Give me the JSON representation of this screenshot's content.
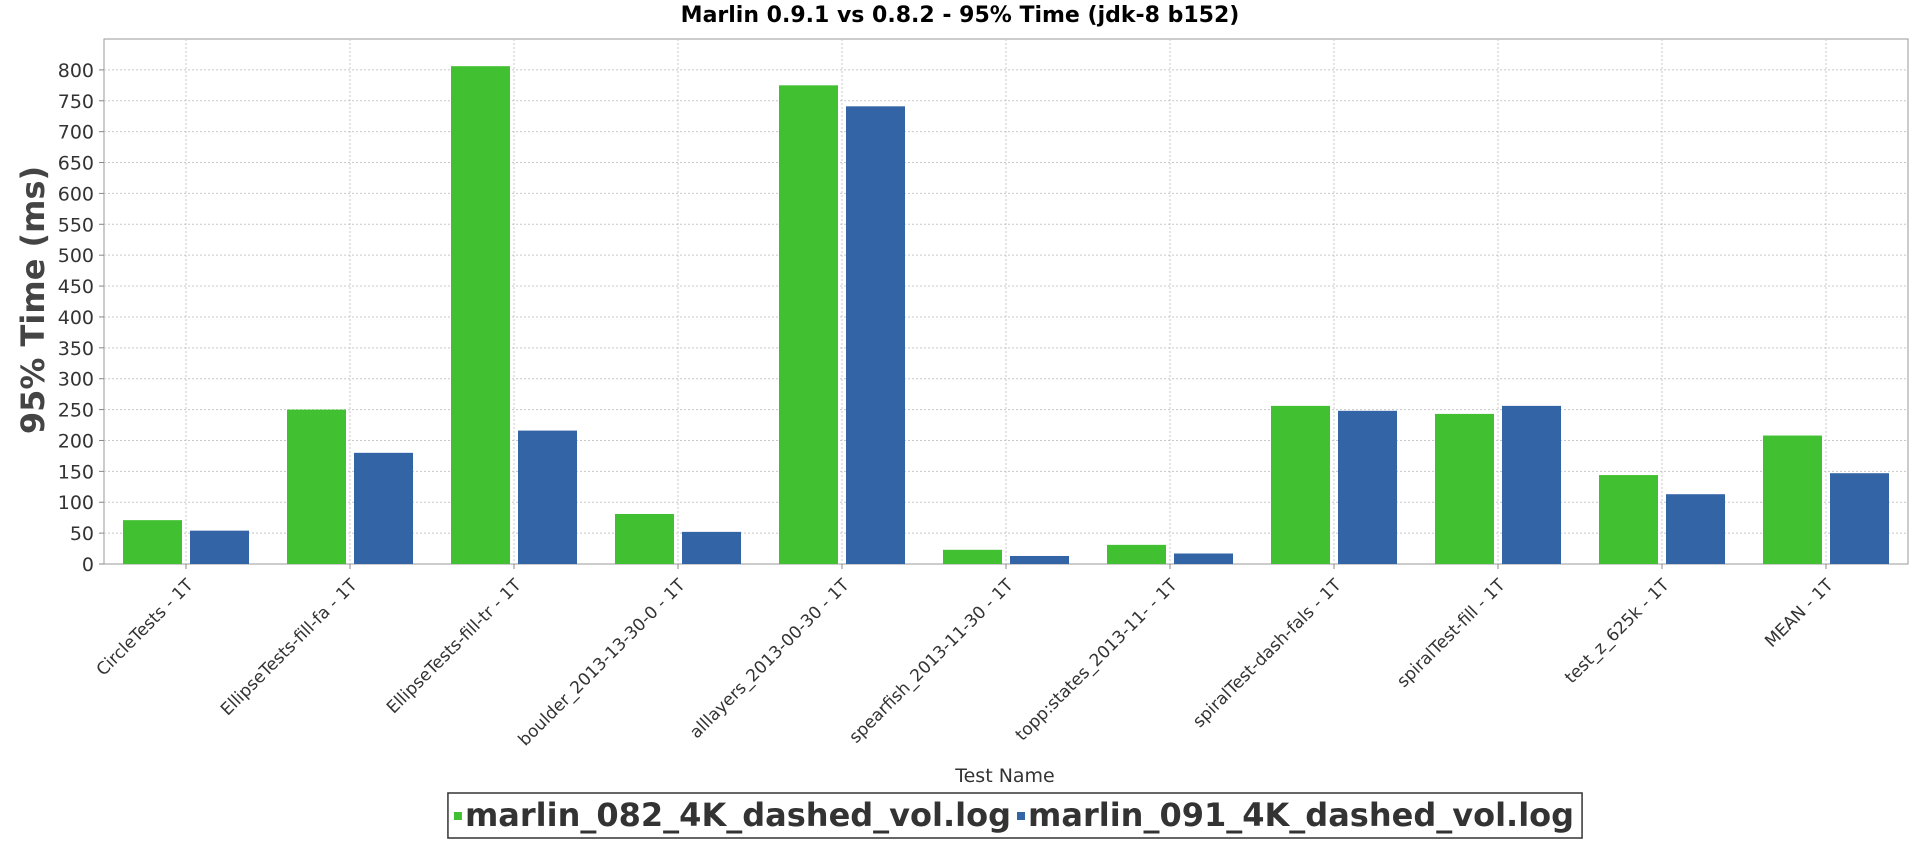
{
  "chart_data": {
    "type": "bar",
    "title": "Marlin 0.9.1 vs 0.8.2 - 95% Time (jdk-8 b152)",
    "xlabel": "Test Name",
    "ylabel": "95% Time (ms)",
    "ylim": [
      0,
      850
    ],
    "yticks": [
      0,
      50,
      100,
      150,
      200,
      250,
      300,
      350,
      400,
      450,
      500,
      550,
      600,
      650,
      700,
      750,
      800
    ],
    "grid": true,
    "legend_position": "bottom",
    "categories": [
      "CircleTests - 1T",
      "EllipseTests-fill-fa - 1T",
      "EllipseTests-fill-tr - 1T",
      "boulder_2013-13-30-0 - 1T",
      "alllayers_2013-00-30 - 1T",
      "spearfish_2013-11-30 - 1T",
      "topp:states_2013-11- - 1T",
      "spiralTest-dash-fals - 1T",
      "spiralTest-fill - 1T",
      "test_z_625k - 1T",
      "MEAN - 1T"
    ],
    "series": [
      {
        "name": "marlin_082_4K_dashed_vol.log",
        "color": "#41c131",
        "values": [
          71,
          250,
          806,
          81,
          775,
          23,
          31,
          256,
          243,
          144,
          208
        ]
      },
      {
        "name": "marlin_091_4K_dashed_vol.log",
        "color": "#3264a6",
        "values": [
          54,
          180,
          216,
          52,
          741,
          13,
          17,
          248,
          256,
          113,
          147
        ]
      }
    ]
  }
}
